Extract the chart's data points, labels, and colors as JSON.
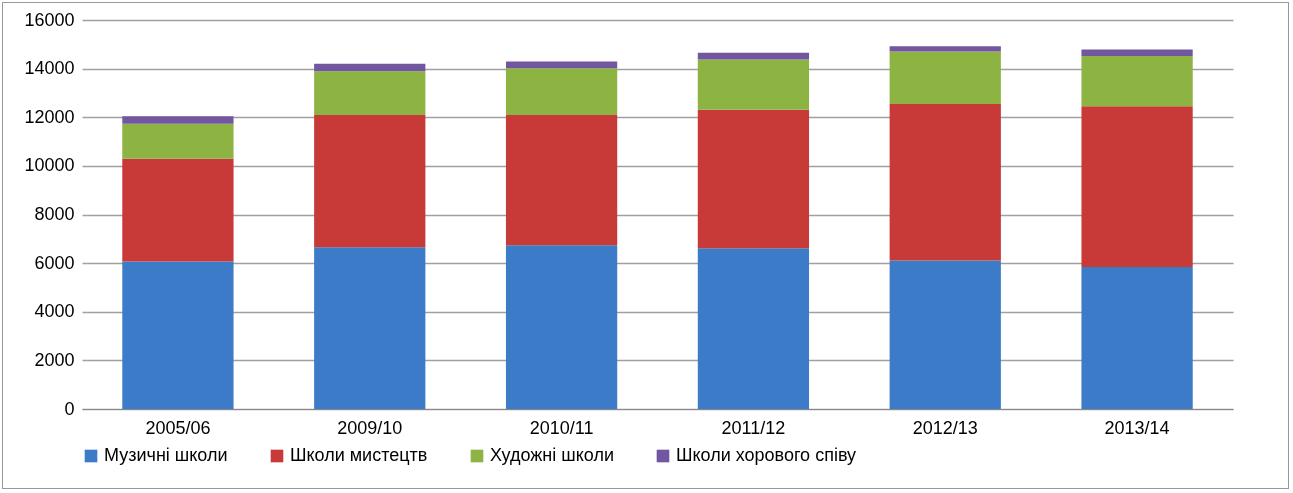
{
  "chart_data": {
    "type": "bar",
    "stacked": true,
    "categories": [
      "2005/06",
      "2009/10",
      "2010/11",
      "2011/12",
      "2012/13",
      "2013/14"
    ],
    "series": [
      {
        "name": "Музичні школи",
        "color": "#3c7bc8",
        "values": [
          6070,
          6650,
          6740,
          6610,
          6110,
          5840
        ]
      },
      {
        "name": "Школи мистецтв",
        "color": "#c83a37",
        "values": [
          4220,
          5440,
          5350,
          5700,
          6430,
          6610
        ]
      },
      {
        "name": "Художні школи",
        "color": "#8db443",
        "values": [
          1440,
          1800,
          1930,
          2070,
          2160,
          2070
        ]
      },
      {
        "name": "Школи хорового співу",
        "color": "#7356a0",
        "values": [
          310,
          310,
          270,
          270,
          220,
          270
        ]
      }
    ],
    "ylim": [
      0,
      16000
    ],
    "yticks": [
      0,
      2000,
      4000,
      6000,
      8000,
      10000,
      12000,
      14000,
      16000
    ],
    "grid": "y",
    "legend": "bottom"
  }
}
